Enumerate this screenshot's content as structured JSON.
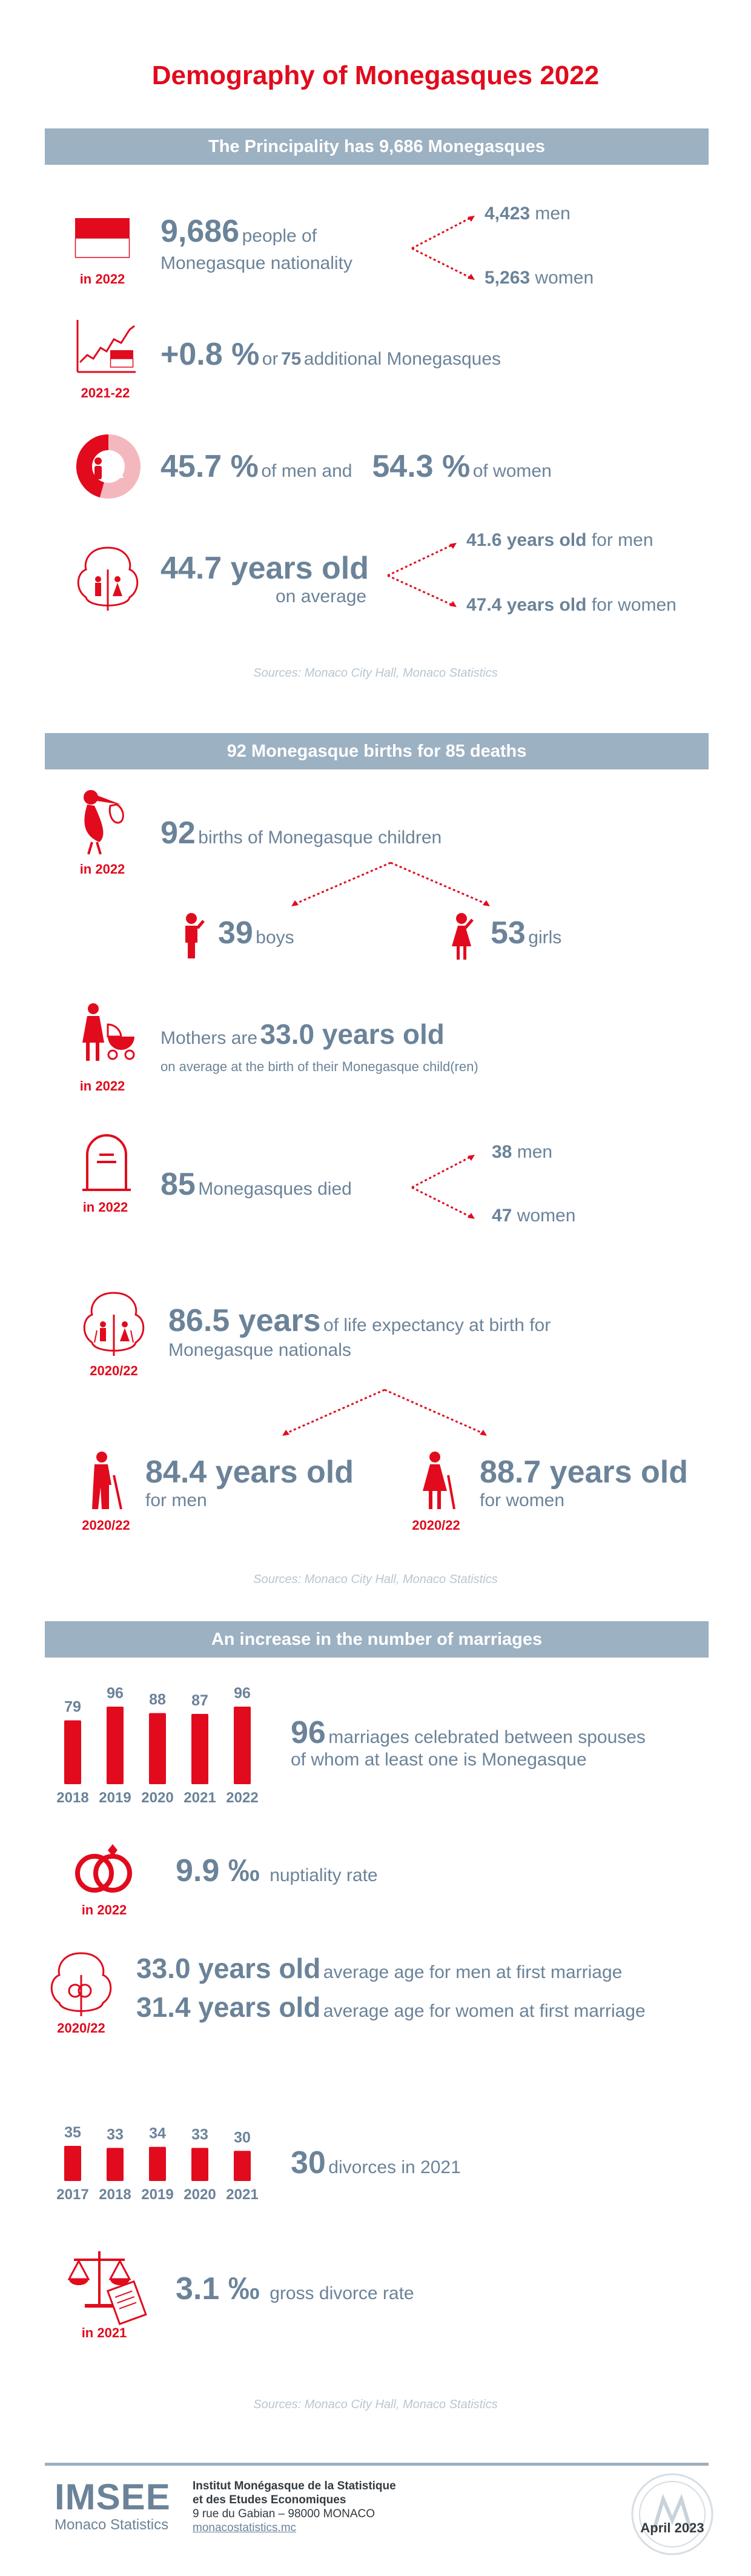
{
  "title": "Demography of Monegasques 2022",
  "section1": {
    "header": "The Principality has 9,686 Monegasques",
    "population": {
      "value": "9,686",
      "text": "people of",
      "text2": "Monegasque nationality",
      "year": "in 2022"
    },
    "men": {
      "value": "4,423",
      "text": "men"
    },
    "women": {
      "value": "5,263",
      "text": "women"
    },
    "growth": {
      "value": "+0.8 %",
      "text1": "or",
      "value2": "75",
      "text2": "additional Monegasques",
      "year": "2021-22"
    },
    "share": {
      "men_value": "45.7 %",
      "men_text": "of men and",
      "women_value": "54.3 %",
      "women_text": "of women",
      "men_fraction": 0.457
    },
    "age": {
      "value": "44.7 years old",
      "text": "on average",
      "men_value": "41.6 years old",
      "men_text": "for men",
      "women_value": "47.4 years old",
      "women_text": "for women"
    },
    "source": "Sources: Monaco City Hall, Monaco Statistics"
  },
  "section2": {
    "header": "92 Monegasque births for 85 deaths",
    "births": {
      "value": "92",
      "text": "births of Monegasque children",
      "year": "in 2022"
    },
    "boys": {
      "value": "39",
      "text": "boys"
    },
    "girls": {
      "value": "53",
      "text": "girls"
    },
    "mothers": {
      "text": "Mothers are",
      "value": "33.0 years old",
      "subtext": "on average at the birth of their Monegasque child(ren)",
      "year": "in 2022"
    },
    "deaths": {
      "value": "85",
      "text": "Monegasques died",
      "year": "in 2022",
      "men_value": "38",
      "men_text": "men",
      "women_value": "47",
      "women_text": "women"
    },
    "life": {
      "value": "86.5 years",
      "text1": "of life expectancy at birth for",
      "text2": "Monegasque nationals",
      "year": "2020/22"
    },
    "life_men": {
      "value": "84.4 years old",
      "text": "for men",
      "year": "2020/22"
    },
    "life_women": {
      "value": "88.7 years old",
      "text": "for women",
      "year": "2020/22"
    },
    "source": "Sources: Monaco City Hall, Monaco Statistics"
  },
  "section3": {
    "header": "An increase in the number of marriages",
    "marriages_text": {
      "value": "96",
      "text1": "marriages celebrated between spouses",
      "text2": "of whom at least one is Monegasque"
    },
    "nuptiality": {
      "value": "9.9 ‰",
      "text": "nuptiality rate",
      "year": "in 2022"
    },
    "first_marriage": {
      "men_value": "33.0 years old",
      "men_text": "average age for men at first marriage",
      "women_value": "31.4 years old",
      "women_text": "average age for women at first marriage",
      "year": "2020/22"
    },
    "divorces_text": {
      "value": "30",
      "text": "divorces in 2021"
    },
    "divorce_rate": {
      "value": "3.1 ‰",
      "text": "gross divorce rate",
      "year": "in 2021"
    },
    "source": "Sources: Monaco City Hall, Monaco Statistics"
  },
  "chart_data": [
    {
      "type": "bar",
      "categories": [
        "2018",
        "2019",
        "2020",
        "2021",
        "2022"
      ],
      "values": [
        79,
        96,
        88,
        87,
        96
      ],
      "ylim": [
        0,
        96
      ]
    },
    {
      "type": "bar",
      "categories": [
        "2017",
        "2018",
        "2019",
        "2020",
        "2021"
      ],
      "values": [
        35,
        33,
        34,
        33,
        30
      ],
      "ylim": [
        0,
        35
      ]
    }
  ],
  "footer": {
    "logo_text": "IMSEE",
    "logo_sub": "Monaco Statistics",
    "org1": "Institut Monégasque de la Statistique",
    "org2": "et des Etudes Economiques",
    "address": "9 rue du Gabian – 98000 MONACO",
    "website": "monacostatistics.mc",
    "date": "April 2023"
  },
  "colors": {
    "accent": "#e10b1d",
    "text": "#6b8399",
    "band": "#9cb1c2"
  }
}
